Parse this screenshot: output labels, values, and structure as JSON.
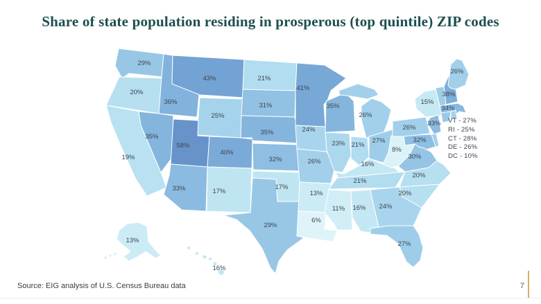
{
  "title": "Share of state population residing in prosperous (top quintile) ZIP codes",
  "colors": {
    "title": "#1d4e4e",
    "label": "#3e4450",
    "accent_line": "#d3b05e",
    "background": "#ffffff"
  },
  "chart_data": {
    "type": "choropleth",
    "subtype": "us_state_map",
    "title": "Share of state population residing in prosperous (top quintile) ZIP codes",
    "unit": "%",
    "color_scale": {
      "stops": [
        [
          5,
          "#e2f5f9"
        ],
        [
          15,
          "#c6eaf4"
        ],
        [
          25,
          "#a5d3ec"
        ],
        [
          35,
          "#84b5dd"
        ],
        [
          45,
          "#6f9fd2"
        ],
        [
          60,
          "#6691c9"
        ]
      ]
    },
    "states": [
      {
        "code": "WA",
        "value": 29
      },
      {
        "code": "OR",
        "value": 20
      },
      {
        "code": "CA",
        "value": 19
      },
      {
        "code": "NV",
        "value": 35
      },
      {
        "code": "ID",
        "value": 36
      },
      {
        "code": "MT",
        "value": 43
      },
      {
        "code": "WY",
        "value": 25
      },
      {
        "code": "UT",
        "value": 58
      },
      {
        "code": "CO",
        "value": 40
      },
      {
        "code": "AZ",
        "value": 33
      },
      {
        "code": "NM",
        "value": 17
      },
      {
        "code": "ND",
        "value": 21
      },
      {
        "code": "SD",
        "value": 31
      },
      {
        "code": "NE",
        "value": 35
      },
      {
        "code": "KS",
        "value": 32
      },
      {
        "code": "OK",
        "value": 17
      },
      {
        "code": "TX",
        "value": 29
      },
      {
        "code": "MN",
        "value": 41
      },
      {
        "code": "IA",
        "value": 24
      },
      {
        "code": "MO",
        "value": 26
      },
      {
        "code": "AR",
        "value": 13
      },
      {
        "code": "LA",
        "value": 6
      },
      {
        "code": "WI",
        "value": 35
      },
      {
        "code": "IL",
        "value": 23
      },
      {
        "code": "IN",
        "value": 21
      },
      {
        "code": "MI",
        "value": 26
      },
      {
        "code": "OH",
        "value": 27
      },
      {
        "code": "KY",
        "value": 16
      },
      {
        "code": "TN",
        "value": 21
      },
      {
        "code": "MS",
        "value": 11
      },
      {
        "code": "AL",
        "value": 16
      },
      {
        "code": "GA",
        "value": 24
      },
      {
        "code": "FL",
        "value": 27
      },
      {
        "code": "SC",
        "value": 20
      },
      {
        "code": "NC",
        "value": 20
      },
      {
        "code": "VA",
        "value": 30
      },
      {
        "code": "WV",
        "value": 8
      },
      {
        "code": "MD",
        "value": 32
      },
      {
        "code": "PA",
        "value": 26
      },
      {
        "code": "NY",
        "value": 15
      },
      {
        "code": "NJ",
        "value": 33
      },
      {
        "code": "MA",
        "value": 34
      },
      {
        "code": "CT",
        "value": 28,
        "label_shown": false
      },
      {
        "code": "RI",
        "value": 25,
        "label_shown": false
      },
      {
        "code": "VT",
        "value": 27,
        "label_shown": false
      },
      {
        "code": "NH",
        "value": 38
      },
      {
        "code": "ME",
        "value": 26
      },
      {
        "code": "DE",
        "value": 26,
        "label_shown": false
      },
      {
        "code": "DC",
        "value": 10,
        "label_shown": false
      },
      {
        "code": "AK",
        "value": 13
      },
      {
        "code": "HI",
        "value": 16
      }
    ],
    "side_list": [
      {
        "code": "VT",
        "value": 27
      },
      {
        "code": "RI",
        "value": 25
      },
      {
        "code": "CT",
        "value": 28
      },
      {
        "code": "DE",
        "value": 26
      },
      {
        "code": "DC",
        "value": 10
      }
    ]
  },
  "footer": {
    "source": "Source: EIG analysis of U.S. Census Bureau data",
    "page": "7"
  }
}
